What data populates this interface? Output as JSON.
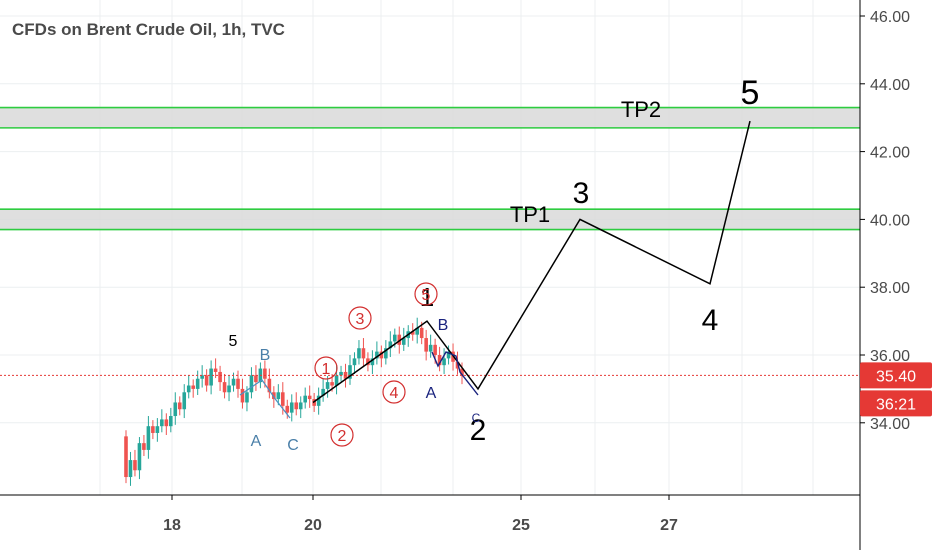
{
  "chart_data": {
    "type": "candlestick",
    "title": "CFDs on Brent Crude Oil, 1h, TVC",
    "colors": {
      "up": "#26a69a",
      "down": "#ef5350",
      "wave": "#000000",
      "zone_border": "#2ecc40",
      "zone_fill": "#d9d9d9",
      "price_line": "#e53935",
      "subwave_red": "#d32f2f",
      "subwave_blue": "#1a237e"
    },
    "xlabel": "",
    "ylabel": "",
    "ylim": [
      32,
      46.5
    ],
    "x_ticks": [
      "18",
      "20",
      "25",
      "27"
    ],
    "y_ticks": [
      "34.00",
      "36.00",
      "38.00",
      "40.00",
      "42.00",
      "44.00",
      "46.00"
    ],
    "current_price": {
      "label": "35.40",
      "value": 35.4
    },
    "countdown": {
      "label": "36:21"
    },
    "zones": [
      {
        "name": "TP1",
        "low": 39.7,
        "high": 40.3
      },
      {
        "name": "TP2",
        "low": 42.7,
        "high": 43.3
      }
    ],
    "candles_series": {
      "start": 33.6,
      "points": [
        32.4,
        32.9,
        32.6,
        33.4,
        33.2,
        33.9,
        33.7,
        33.9,
        34.1,
        33.9,
        34.2,
        34.6,
        34.4,
        34.9,
        35.1,
        35.0,
        35.3,
        35.4,
        35.1,
        35.6,
        35.5,
        35.2,
        34.9,
        35.1,
        35.3,
        35.0,
        34.6,
        34.9,
        35.4,
        35.2,
        35.6,
        35.3,
        34.9,
        34.7,
        34.9,
        34.5,
        34.3,
        34.6,
        34.4,
        34.6,
        34.8,
        34.7,
        34.5,
        34.8,
        35.0,
        35.2,
        35.1,
        35.4,
        35.5,
        35.3,
        35.7,
        35.9,
        36.2,
        35.9,
        35.7,
        35.9,
        36.1,
        35.9,
        36.2,
        36.4,
        36.6,
        36.3,
        36.5,
        36.7,
        36.6,
        36.8,
        36.5,
        36.1,
        36.3,
        36.0,
        35.7,
        35.9,
        36.1,
        35.8,
        35.6,
        35.4
      ]
    },
    "wave_path": [
      {
        "label": "",
        "price": 34.6
      },
      {
        "label": "1",
        "price": 37.0
      },
      {
        "label": "2",
        "price": 35.0
      },
      {
        "label": "3",
        "price": 40.0
      },
      {
        "label": "4",
        "price": 38.1
      },
      {
        "label": "5",
        "price": 42.9
      }
    ],
    "wave_labels": [
      "1",
      "2",
      "3",
      "4",
      "5"
    ],
    "circled_labels": [
      "1",
      "2",
      "3",
      "4",
      "5"
    ],
    "left_wave_label": "5",
    "abc_left": [
      "A",
      "B",
      "C"
    ],
    "abc_right": [
      "A",
      "B",
      "C"
    ],
    "target_labels": [
      "TP1",
      "TP2"
    ]
  }
}
